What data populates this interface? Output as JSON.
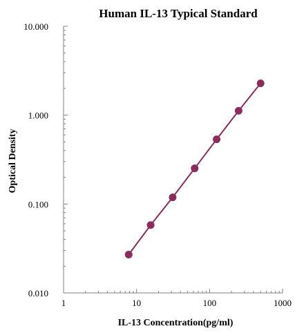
{
  "chart_data": {
    "type": "scatter",
    "title": "Human  IL-13 Typical Standard",
    "xlabel": "IL-13  Concentration(pg/ml)",
    "ylabel": "Optical Density",
    "x_scale": "log",
    "y_scale": "log",
    "xlim": [
      1,
      1000
    ],
    "ylim": [
      0.01,
      10
    ],
    "x_ticks": [
      1,
      10,
      100,
      1000
    ],
    "x_tick_labels": [
      "1",
      "10",
      "100",
      "1000"
    ],
    "y_ticks": [
      0.01,
      0.1,
      1,
      10
    ],
    "y_tick_labels": [
      "0.010",
      "0.100",
      "1.000",
      "10.000"
    ],
    "grid": false,
    "legend": "none",
    "series": [
      {
        "x": [
          7.8,
          15.6,
          31.25,
          62.5,
          125,
          250,
          500
        ],
        "y": [
          0.027,
          0.058,
          0.119,
          0.252,
          0.535,
          1.12,
          2.28
        ],
        "color": "#8b2c5a",
        "marker": "circle",
        "line": true
      }
    ]
  }
}
